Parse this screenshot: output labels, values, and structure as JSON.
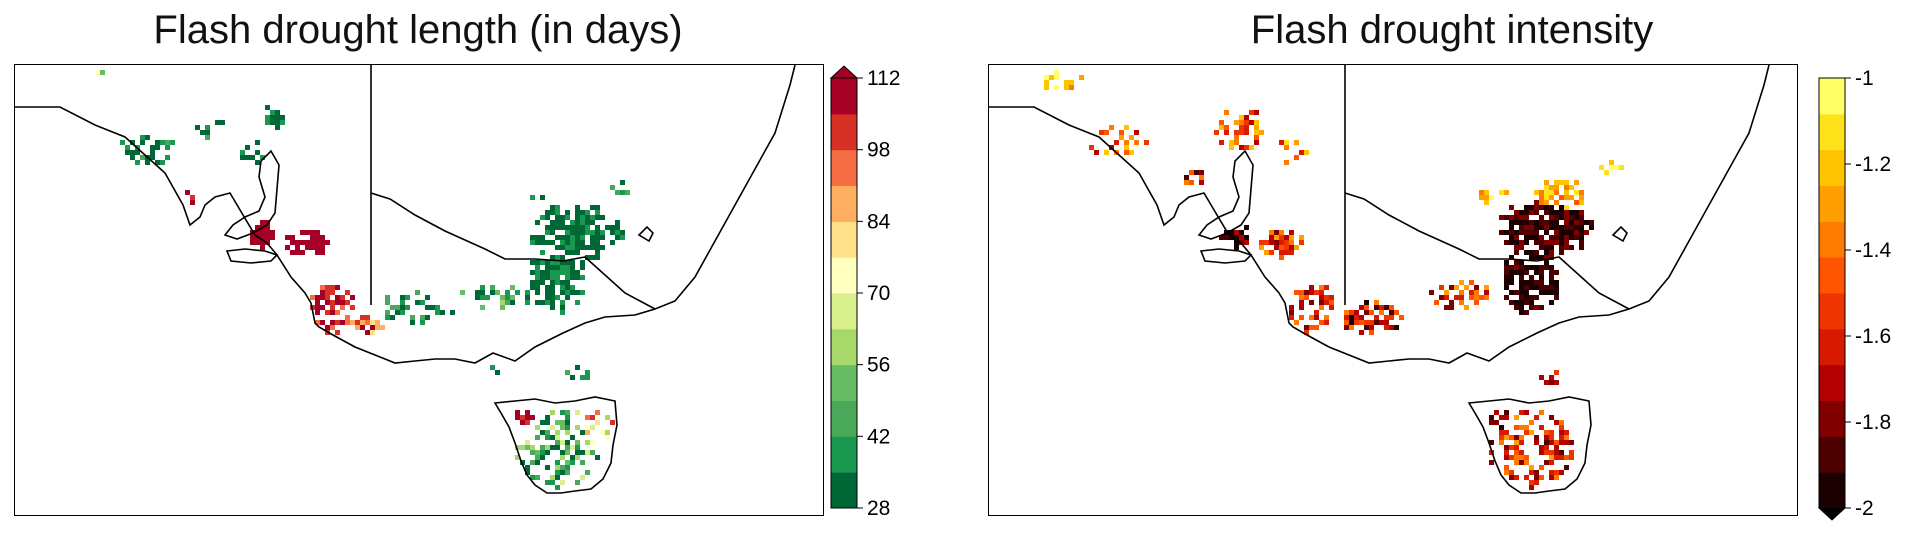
{
  "panels": {
    "left": {
      "title": "Flash drought length (in days)"
    },
    "right": {
      "title": "Flash drought intensity"
    }
  },
  "chart_data": [
    {
      "type": "heatmap",
      "title": "Flash drought length (in days)",
      "colorbar": {
        "min": 28,
        "max": 112,
        "extend": "max",
        "ticks": [
          28,
          42,
          56,
          70,
          84,
          98,
          112
        ],
        "tick_labels": [
          "28",
          "42",
          "56",
          "70",
          "84",
          "98",
          "112"
        ],
        "levels": 12,
        "colors": [
          "#006837",
          "#1a9850",
          "#4aa85a",
          "#66bd63",
          "#a6d96a",
          "#d9ef8b",
          "#ffffbf",
          "#fee08b",
          "#fdae61",
          "#f46d43",
          "#d73027",
          "#a50026"
        ],
        "extend_color": "#a50026"
      },
      "map_region": "South-eastern Australia and Tasmania",
      "grid": false
    },
    {
      "type": "heatmap",
      "title": "Flash drought intensity",
      "colorbar": {
        "min": -2,
        "max": -1,
        "extend": "min",
        "ticks": [
          -2,
          -1.8,
          -1.6,
          -1.4,
          -1.2,
          -1
        ],
        "tick_labels": [
          "-2",
          "-1.8",
          "-1.6",
          "-1.4",
          "-1.2",
          "-1"
        ],
        "levels": 12,
        "colors": [
          "#1a0000",
          "#4d0000",
          "#800000",
          "#b30000",
          "#d81a00",
          "#ee3500",
          "#ff5500",
          "#ff7a00",
          "#ffa000",
          "#ffc400",
          "#ffe31a",
          "#ffff66"
        ],
        "extend_color": "#000000"
      },
      "map_region": "South-eastern Australia and Tasmania",
      "grid": false
    }
  ]
}
